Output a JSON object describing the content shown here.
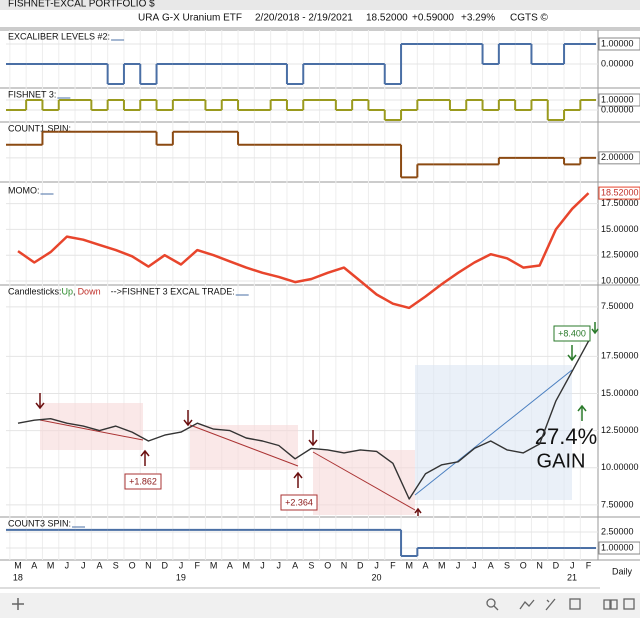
{
  "header": {
    "window_title": "FISHNET-EXCAL PORTFOLIO $",
    "symbol": "URA",
    "name": "G-X Uranium ETF",
    "range": "2/20/2018 - 2/19/2021",
    "last": "18.52000",
    "change": "+0.59000",
    "change_pct": "+3.29%",
    "source": "CGTS ©"
  },
  "x_axis": {
    "categories": [
      "M",
      "A",
      "M",
      "J",
      "J",
      "A",
      "S",
      "O",
      "N",
      "D",
      "J",
      "F",
      "M",
      "A",
      "M",
      "J",
      "J",
      "A",
      "S",
      "O",
      "N",
      "D",
      "J",
      "F",
      "M",
      "A",
      "M",
      "J",
      "J",
      "A",
      "S",
      "O",
      "N",
      "D",
      "J",
      "F"
    ],
    "year_labels": [
      "18",
      null,
      null,
      null,
      null,
      null,
      null,
      null,
      null,
      null,
      "19",
      null,
      null,
      null,
      null,
      null,
      null,
      null,
      null,
      null,
      null,
      null,
      "20",
      null,
      null,
      null,
      null,
      null,
      null,
      null,
      null,
      null,
      null,
      null,
      "21",
      null
    ],
    "period": "Daily"
  },
  "chart_data": [
    {
      "type": "step",
      "title": "EXCALIBER LEVELS #2:",
      "color": "#4a6fa5",
      "ylim": [
        -1.1,
        1.7
      ],
      "yticks": [
        {
          "value": 1,
          "label": "1.00000"
        },
        {
          "value": 0,
          "label": "0.00000"
        }
      ],
      "values": [
        0,
        0,
        0,
        0,
        0,
        0,
        -1,
        0,
        -1,
        0,
        0,
        0,
        0,
        0,
        0,
        0,
        0,
        -1,
        0,
        0,
        0,
        0,
        0,
        -1,
        1,
        1,
        1,
        1,
        1,
        0,
        1,
        1,
        0,
        0,
        1,
        1
      ]
    },
    {
      "type": "step",
      "title": "FISHNET 3:",
      "color": "#9a9a1e",
      "ylim": [
        -1.1,
        2.2
      ],
      "yticks": [
        {
          "value": 1,
          "label": "1.00000"
        },
        {
          "value": 0,
          "label": "0.00000"
        }
      ],
      "values": [
        0,
        1,
        0,
        1,
        1,
        0,
        1,
        0,
        1,
        0,
        1,
        1,
        0,
        1,
        0,
        0,
        1,
        0,
        1,
        1,
        0,
        1,
        0,
        -1,
        0,
        1,
        1,
        0,
        1,
        0,
        1,
        0,
        1,
        -1,
        0,
        1
      ]
    },
    {
      "type": "step",
      "title": "COUNT1 SPIN:",
      "color": "#8b4a12",
      "ylim": [
        -1.4,
        7.5
      ],
      "yticks": [
        {
          "value": 2,
          "label": "2.00000"
        }
      ],
      "values": [
        4,
        4,
        6,
        6,
        6,
        6,
        6,
        6,
        6,
        4,
        6,
        6,
        6,
        6,
        4,
        4,
        4,
        4,
        4,
        4,
        4,
        4,
        4,
        4,
        -1,
        1,
        1,
        1,
        1,
        1,
        2,
        2,
        2,
        2,
        1,
        2
      ]
    },
    {
      "type": "line",
      "title": "MOMO:",
      "color": "#e8452c",
      "ylim": [
        7.0,
        19.4
      ],
      "yticks": [
        {
          "value": 17.5,
          "label": "17.50000"
        },
        {
          "value": 15,
          "label": "15.00000"
        },
        {
          "value": 12.5,
          "label": "12.50000"
        },
        {
          "value": 10,
          "label": "10.00000"
        },
        {
          "value": 7.5,
          "label": "7.50000"
        }
      ],
      "last_label": {
        "value": 18.52,
        "label": "18.52000"
      },
      "values": [
        12.9,
        11.8,
        12.8,
        14.3,
        14.0,
        13.5,
        13.0,
        12.4,
        11.4,
        12.5,
        11.6,
        13.0,
        12.5,
        11.9,
        11.3,
        10.8,
        10.4,
        9.9,
        10.2,
        10.8,
        11.3,
        10.0,
        8.7,
        7.8,
        7.4,
        8.5,
        9.7,
        10.8,
        11.8,
        12.6,
        12.2,
        11.3,
        11.5,
        15.0,
        17.0,
        18.52
      ]
    },
    {
      "type": "line",
      "title": "Candlesticks:",
      "legend": [
        {
          "label": "Up",
          "color": "#2a8a2a"
        },
        {
          "label": "Down",
          "color": "#c0302a"
        }
      ],
      "legend_separator": ",",
      "subtitle": "-->FISHNET 3 EXCAL TRADE:",
      "color": "#333333",
      "ylim": [
        6.82,
        22.3
      ],
      "yticks": [
        {
          "value": 17.5,
          "label": "17.50000"
        },
        {
          "value": 15,
          "label": "15.00000"
        },
        {
          "value": 12.5,
          "label": "12.50000"
        },
        {
          "value": 10,
          "label": "10.00000"
        },
        {
          "value": 7.5,
          "label": "7.50000"
        }
      ],
      "annotations": [
        "+1.862",
        "+2.364",
        "+8.400",
        "27.4%",
        "GAIN"
      ],
      "values": [
        13.0,
        13.2,
        13.3,
        13.0,
        12.8,
        12.5,
        12.8,
        12.4,
        11.8,
        12.2,
        12.4,
        13.0,
        12.6,
        12.5,
        12.0,
        11.8,
        11.5,
        10.6,
        11.3,
        11.2,
        11.0,
        11.2,
        11.1,
        10.3,
        7.9,
        9.6,
        10.2,
        10.4,
        11.3,
        11.8,
        11.2,
        11.0,
        11.6,
        14.5,
        16.5,
        18.52
      ]
    },
    {
      "type": "step",
      "title": "COUNT3 SPIN:",
      "color": "#4a6fa5",
      "ylim": [
        -0.12,
        3.9
      ],
      "yticks": [
        {
          "value": 2.5,
          "label": "2.50000"
        },
        {
          "value": 1,
          "label": "1.00000"
        }
      ],
      "values": [
        2.7,
        2.7,
        2.7,
        2.7,
        2.7,
        2.7,
        2.7,
        2.7,
        2.7,
        2.7,
        2.7,
        2.7,
        2.7,
        2.7,
        2.7,
        2.7,
        2.7,
        2.7,
        2.7,
        2.7,
        2.7,
        2.7,
        2.7,
        2.7,
        0.25,
        1,
        1,
        1,
        1,
        1,
        1,
        1,
        1,
        1,
        1,
        1
      ]
    }
  ]
}
